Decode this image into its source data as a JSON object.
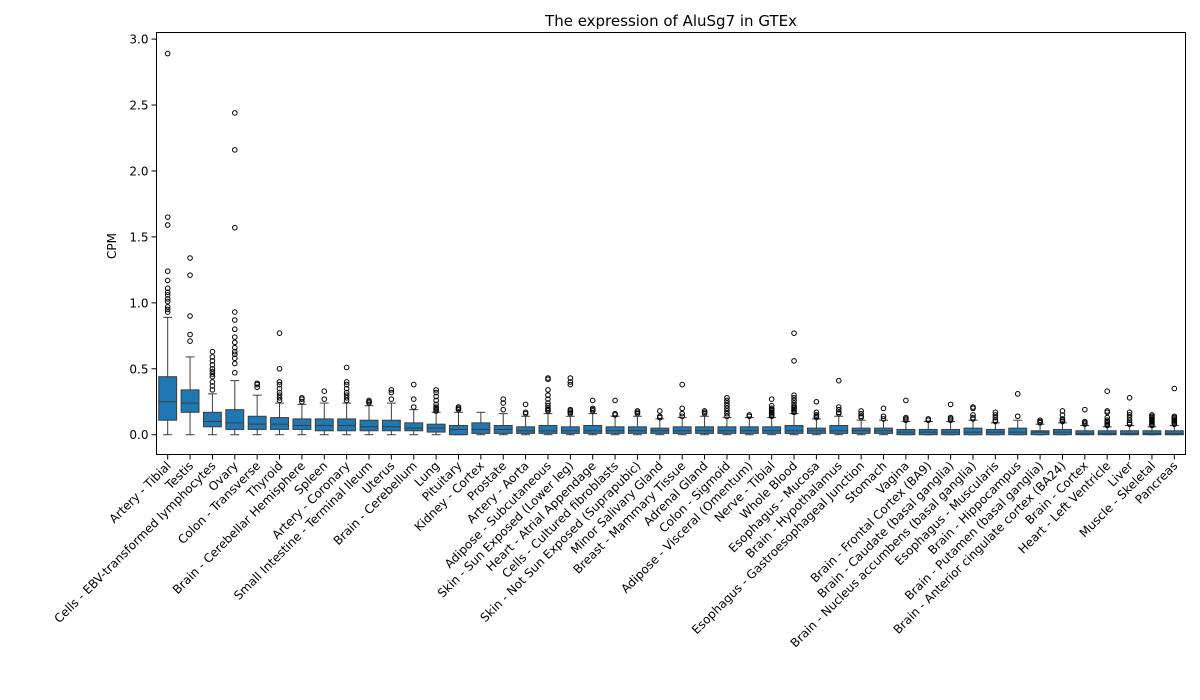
{
  "chart_data": {
    "type": "box",
    "title": "The expression of AluSg7 in GTEx",
    "xlabel": "",
    "ylabel": "CPM",
    "ylim": [
      -0.15,
      3.05
    ],
    "yticks": [
      0.0,
      0.5,
      1.0,
      1.5,
      2.0,
      2.5,
      3.0
    ],
    "ytick_labels": [
      "0.0",
      "0.5",
      "1.0",
      "1.5",
      "2.0",
      "2.5",
      "3.0"
    ],
    "box_color": "#1f77b4",
    "grid": false,
    "categories": [
      "Artery - Tibial",
      "Testis",
      "Cells - EBV-transformed lymphocytes",
      "Ovary",
      "Colon - Transverse",
      "Thyroid",
      "Brain - Cerebellar Hemisphere",
      "Spleen",
      "Artery - Coronary",
      "Small Intestine - Terminal Ileum",
      "Uterus",
      "Brain - Cerebellum",
      "Lung",
      "Pituitary",
      "Kidney - Cortex",
      "Prostate",
      "Artery - Aorta",
      "Adipose - Subcutaneous",
      "Skin - Sun Exposed (Lower leg)",
      "Heart - Atrial Appendage",
      "Cells - Cultured fibroblasts",
      "Skin - Not Sun Exposed (Suprapubic)",
      "Minor Salivary Gland",
      "Breast - Mammary Tissue",
      "Adrenal Gland",
      "Colon - Sigmoid",
      "Adipose - Visceral (Omentum)",
      "Nerve - Tibial",
      "Whole Blood",
      "Esophagus - Mucosa",
      "Brain - Hypothalamus",
      "Esophagus - Gastroesophageal Junction",
      "Stomach",
      "Vagina",
      "Brain - Frontal Cortex (BA9)",
      "Brain - Caudate (basal ganglia)",
      "Brain - Nucleus accumbens (basal ganglia)",
      "Esophagus - Muscularis",
      "Brain - Hippocampus",
      "Brain - Putamen (basal ganglia)",
      "Brain - Anterior cingulate cortex (BA24)",
      "Brain - Cortex",
      "Heart - Left Ventricle",
      "Liver",
      "Muscle - Skeletal",
      "Pancreas"
    ],
    "boxes": [
      {
        "whislo": 0.0,
        "q1": 0.11,
        "med": 0.25,
        "q3": 0.44,
        "whishi": 0.89,
        "fliers": [
          0.93,
          0.95,
          0.97,
          1.01,
          1.03,
          1.06,
          1.08,
          1.11,
          1.17,
          1.24,
          1.59,
          1.65,
          2.89
        ]
      },
      {
        "whislo": 0.0,
        "q1": 0.17,
        "med": 0.24,
        "q3": 0.34,
        "whishi": 0.59,
        "fliers": [
          0.71,
          0.76,
          0.9,
          1.21,
          1.34
        ]
      },
      {
        "whislo": 0.0,
        "q1": 0.06,
        "med": 0.1,
        "q3": 0.17,
        "whishi": 0.31,
        "fliers": [
          0.34,
          0.37,
          0.4,
          0.44,
          0.46,
          0.48,
          0.5,
          0.53,
          0.56,
          0.59,
          0.63
        ]
      },
      {
        "whislo": 0.0,
        "q1": 0.04,
        "med": 0.09,
        "q3": 0.19,
        "whishi": 0.41,
        "fliers": [
          0.47,
          0.54,
          0.58,
          0.61,
          0.63,
          0.66,
          0.7,
          0.74,
          0.8,
          0.87,
          0.93,
          1.57,
          2.16,
          2.44
        ]
      },
      {
        "whislo": 0.0,
        "q1": 0.04,
        "med": 0.08,
        "q3": 0.14,
        "whishi": 0.3,
        "fliers": [
          0.36,
          0.38,
          0.39
        ]
      },
      {
        "whislo": 0.0,
        "q1": 0.04,
        "med": 0.08,
        "q3": 0.13,
        "whishi": 0.24,
        "fliers": [
          0.26,
          0.28,
          0.3,
          0.32,
          0.35,
          0.38,
          0.4,
          0.5,
          0.77
        ]
      },
      {
        "whislo": 0.0,
        "q1": 0.04,
        "med": 0.07,
        "q3": 0.12,
        "whishi": 0.23,
        "fliers": [
          0.25,
          0.27,
          0.28
        ]
      },
      {
        "whislo": 0.0,
        "q1": 0.03,
        "med": 0.07,
        "q3": 0.12,
        "whishi": 0.24,
        "fliers": [
          0.27,
          0.33
        ]
      },
      {
        "whislo": 0.0,
        "q1": 0.03,
        "med": 0.07,
        "q3": 0.12,
        "whishi": 0.24,
        "fliers": [
          0.26,
          0.28,
          0.3,
          0.32,
          0.35,
          0.38,
          0.4,
          0.51
        ]
      },
      {
        "whislo": 0.0,
        "q1": 0.03,
        "med": 0.06,
        "q3": 0.11,
        "whishi": 0.22,
        "fliers": [
          0.24,
          0.25,
          0.26
        ]
      },
      {
        "whislo": 0.0,
        "q1": 0.03,
        "med": 0.06,
        "q3": 0.11,
        "whishi": 0.24,
        "fliers": [
          0.27,
          0.32,
          0.34
        ]
      },
      {
        "whislo": 0.0,
        "q1": 0.03,
        "med": 0.05,
        "q3": 0.09,
        "whishi": 0.19,
        "fliers": [
          0.21,
          0.27,
          0.38
        ]
      },
      {
        "whislo": 0.0,
        "q1": 0.02,
        "med": 0.05,
        "q3": 0.08,
        "whishi": 0.17,
        "fliers": [
          0.18,
          0.19,
          0.2,
          0.21,
          0.23,
          0.26,
          0.29,
          0.32,
          0.34
        ]
      },
      {
        "whislo": 0.0,
        "q1": 0.0,
        "med": 0.04,
        "q3": 0.07,
        "whishi": 0.17,
        "fliers": [
          0.19,
          0.2,
          0.21
        ]
      },
      {
        "whislo": 0.0,
        "q1": 0.01,
        "med": 0.04,
        "q3": 0.09,
        "whishi": 0.17,
        "fliers": []
      },
      {
        "whislo": 0.0,
        "q1": 0.01,
        "med": 0.04,
        "q3": 0.07,
        "whishi": 0.16,
        "fliers": [
          0.19,
          0.24,
          0.27
        ]
      },
      {
        "whislo": 0.0,
        "q1": 0.01,
        "med": 0.03,
        "q3": 0.06,
        "whishi": 0.14,
        "fliers": [
          0.16,
          0.17,
          0.23
        ]
      },
      {
        "whislo": 0.0,
        "q1": 0.01,
        "med": 0.03,
        "q3": 0.07,
        "whishi": 0.16,
        "fliers": [
          0.18,
          0.19,
          0.2,
          0.22,
          0.24,
          0.27,
          0.3,
          0.34,
          0.42,
          0.43
        ]
      },
      {
        "whislo": 0.0,
        "q1": 0.01,
        "med": 0.03,
        "q3": 0.06,
        "whishi": 0.14,
        "fliers": [
          0.16,
          0.17,
          0.18,
          0.19,
          0.38,
          0.4,
          0.43
        ]
      },
      {
        "whislo": 0.0,
        "q1": 0.01,
        "med": 0.03,
        "q3": 0.07,
        "whishi": 0.16,
        "fliers": [
          0.18,
          0.19,
          0.2,
          0.26
        ]
      },
      {
        "whislo": 0.0,
        "q1": 0.01,
        "med": 0.03,
        "q3": 0.06,
        "whishi": 0.14,
        "fliers": [
          0.15,
          0.16,
          0.26
        ]
      },
      {
        "whislo": 0.0,
        "q1": 0.01,
        "med": 0.03,
        "q3": 0.06,
        "whishi": 0.14,
        "fliers": [
          0.16,
          0.17,
          0.18
        ]
      },
      {
        "whislo": 0.0,
        "q1": 0.01,
        "med": 0.03,
        "q3": 0.05,
        "whishi": 0.12,
        "fliers": [
          0.13,
          0.14,
          0.18
        ]
      },
      {
        "whislo": 0.0,
        "q1": 0.01,
        "med": 0.03,
        "q3": 0.06,
        "whishi": 0.13,
        "fliers": [
          0.14,
          0.16,
          0.2,
          0.38
        ]
      },
      {
        "whislo": 0.0,
        "q1": 0.01,
        "med": 0.03,
        "q3": 0.06,
        "whishi": 0.14,
        "fliers": [
          0.16,
          0.17,
          0.18
        ]
      },
      {
        "whislo": 0.0,
        "q1": 0.01,
        "med": 0.03,
        "q3": 0.06,
        "whishi": 0.13,
        "fliers": [
          0.14,
          0.16,
          0.18,
          0.2,
          0.22,
          0.24,
          0.26,
          0.28
        ]
      },
      {
        "whislo": 0.0,
        "q1": 0.01,
        "med": 0.03,
        "q3": 0.06,
        "whishi": 0.13,
        "fliers": [
          0.14,
          0.15
        ]
      },
      {
        "whislo": 0.0,
        "q1": 0.01,
        "med": 0.03,
        "q3": 0.06,
        "whishi": 0.13,
        "fliers": [
          0.14,
          0.15,
          0.16,
          0.17,
          0.18,
          0.19,
          0.2,
          0.22,
          0.27
        ]
      },
      {
        "whislo": 0.0,
        "q1": 0.01,
        "med": 0.03,
        "q3": 0.07,
        "whishi": 0.16,
        "fliers": [
          0.17,
          0.18,
          0.19,
          0.2,
          0.21,
          0.22,
          0.24,
          0.26,
          0.28,
          0.3,
          0.56,
          0.77
        ]
      },
      {
        "whislo": 0.0,
        "q1": 0.01,
        "med": 0.03,
        "q3": 0.05,
        "whishi": 0.12,
        "fliers": [
          0.13,
          0.14,
          0.15,
          0.17,
          0.25
        ]
      },
      {
        "whislo": 0.0,
        "q1": 0.01,
        "med": 0.03,
        "q3": 0.07,
        "whishi": 0.14,
        "fliers": [
          0.16,
          0.17,
          0.19,
          0.21,
          0.41
        ]
      },
      {
        "whislo": 0.0,
        "q1": 0.01,
        "med": 0.03,
        "q3": 0.05,
        "whishi": 0.11,
        "fliers": [
          0.13,
          0.14,
          0.16,
          0.18
        ]
      },
      {
        "whislo": 0.0,
        "q1": 0.01,
        "med": 0.03,
        "q3": 0.05,
        "whishi": 0.11,
        "fliers": [
          0.12,
          0.14,
          0.2
        ]
      },
      {
        "whislo": 0.0,
        "q1": 0.0,
        "med": 0.02,
        "q3": 0.04,
        "whishi": 0.1,
        "fliers": [
          0.11,
          0.12,
          0.13,
          0.26
        ]
      },
      {
        "whislo": 0.0,
        "q1": 0.0,
        "med": 0.02,
        "q3": 0.04,
        "whishi": 0.1,
        "fliers": [
          0.11,
          0.12
        ]
      },
      {
        "whislo": 0.0,
        "q1": 0.0,
        "med": 0.02,
        "q3": 0.04,
        "whishi": 0.1,
        "fliers": [
          0.11,
          0.12,
          0.13,
          0.23
        ]
      },
      {
        "whislo": 0.0,
        "q1": 0.0,
        "med": 0.02,
        "q3": 0.05,
        "whishi": 0.11,
        "fliers": [
          0.12,
          0.13,
          0.15,
          0.2,
          0.21
        ]
      },
      {
        "whislo": 0.0,
        "q1": 0.0,
        "med": 0.02,
        "q3": 0.04,
        "whishi": 0.09,
        "fliers": [
          0.1,
          0.11,
          0.13,
          0.15,
          0.17
        ]
      },
      {
        "whislo": 0.0,
        "q1": 0.0,
        "med": 0.02,
        "q3": 0.05,
        "whishi": 0.11,
        "fliers": [
          0.14,
          0.31
        ]
      },
      {
        "whislo": 0.0,
        "q1": 0.0,
        "med": 0.02,
        "q3": 0.03,
        "whishi": 0.08,
        "fliers": [
          0.09,
          0.1,
          0.11
        ]
      },
      {
        "whislo": 0.0,
        "q1": 0.0,
        "med": 0.02,
        "q3": 0.04,
        "whishi": 0.09,
        "fliers": [
          0.1,
          0.11,
          0.12,
          0.15,
          0.18
        ]
      },
      {
        "whislo": 0.0,
        "q1": 0.0,
        "med": 0.01,
        "q3": 0.03,
        "whishi": 0.07,
        "fliers": [
          0.08,
          0.09,
          0.1,
          0.19
        ]
      },
      {
        "whislo": 0.0,
        "q1": 0.0,
        "med": 0.01,
        "q3": 0.03,
        "whishi": 0.06,
        "fliers": [
          0.07,
          0.08,
          0.09,
          0.1,
          0.11,
          0.13,
          0.17,
          0.18,
          0.33
        ]
      },
      {
        "whislo": 0.0,
        "q1": 0.0,
        "med": 0.01,
        "q3": 0.03,
        "whishi": 0.07,
        "fliers": [
          0.08,
          0.09,
          0.11,
          0.13,
          0.15,
          0.17,
          0.28
        ]
      },
      {
        "whislo": 0.0,
        "q1": 0.0,
        "med": 0.01,
        "q3": 0.03,
        "whishi": 0.06,
        "fliers": [
          0.07,
          0.08,
          0.09,
          0.1,
          0.11,
          0.12,
          0.13,
          0.14,
          0.15
        ]
      },
      {
        "whislo": 0.0,
        "q1": 0.0,
        "med": 0.01,
        "q3": 0.03,
        "whishi": 0.07,
        "fliers": [
          0.08,
          0.09,
          0.1,
          0.11,
          0.12,
          0.13,
          0.14,
          0.35
        ]
      }
    ]
  }
}
